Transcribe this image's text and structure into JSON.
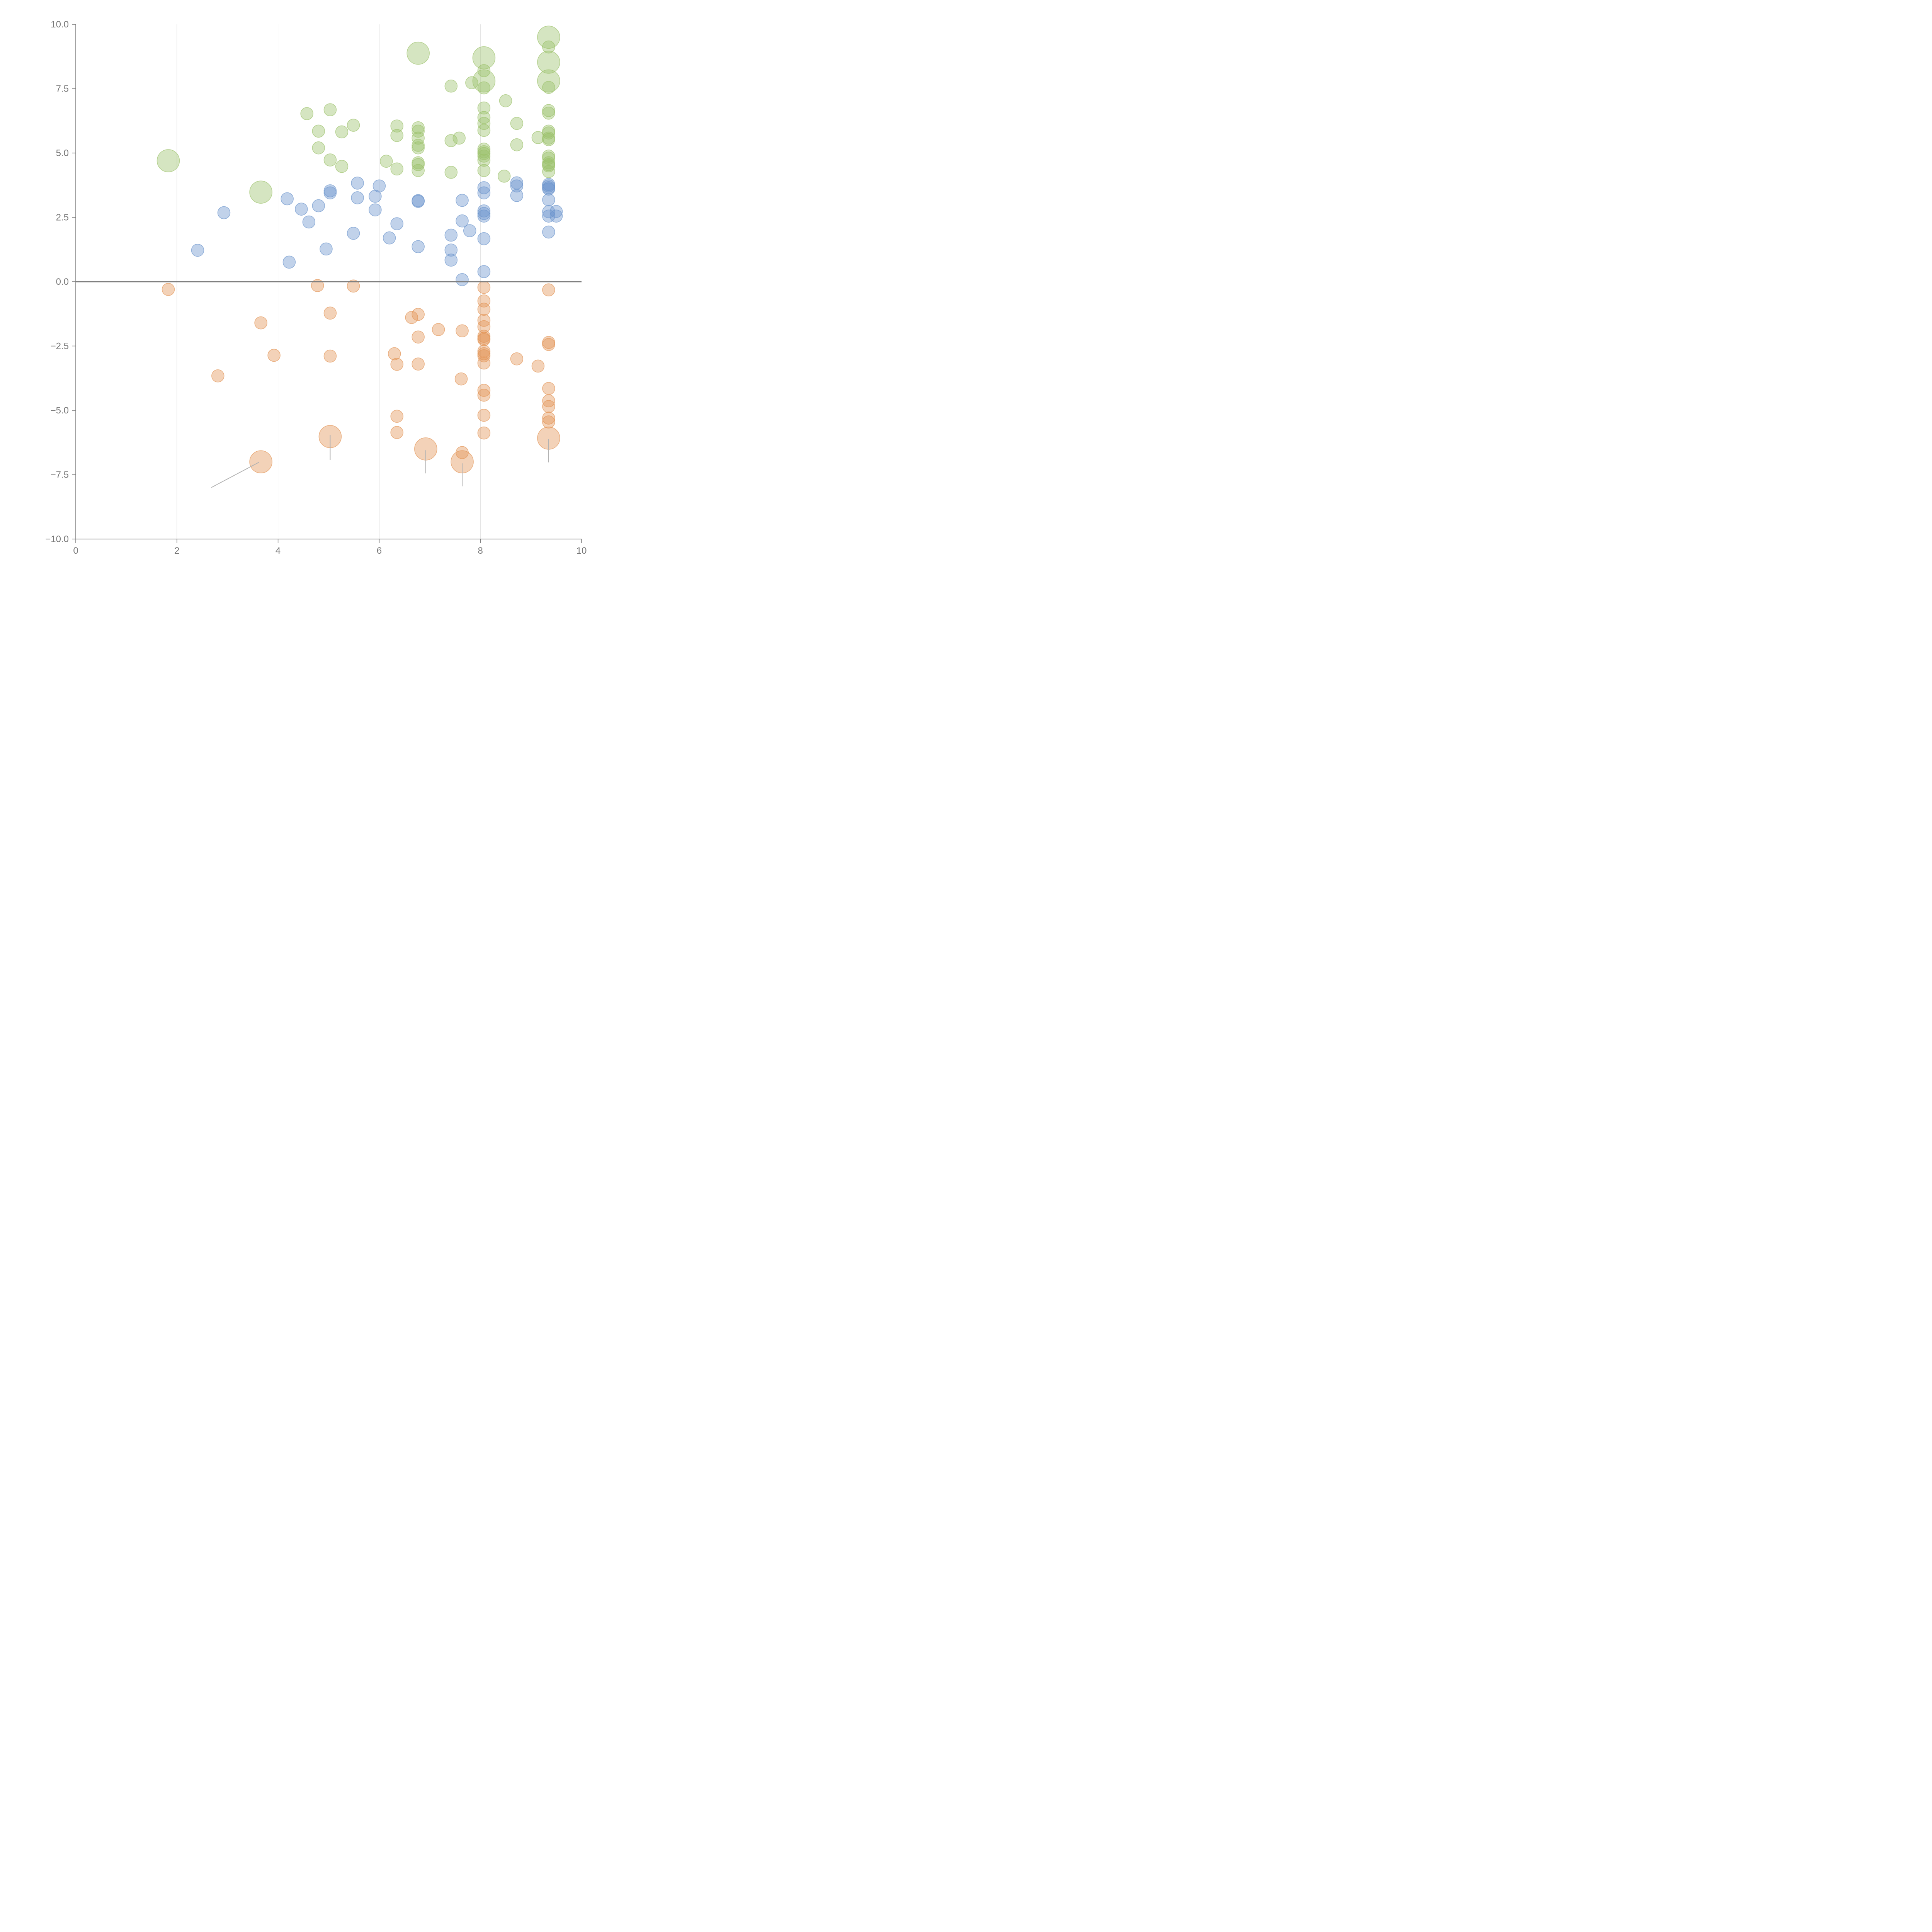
{
  "chart_data": {
    "type": "scatter",
    "title": "",
    "xlabel": "",
    "ylabel": "",
    "xlim": [
      0,
      10
    ],
    "ylim": [
      -10,
      10
    ],
    "grid": "vertical",
    "x_ticks": [
      0,
      2,
      4,
      6,
      8,
      10
    ],
    "x_tick_labels": [
      "0",
      "2",
      "4",
      "6",
      "8",
      "10"
    ],
    "y_ticks": [
      10,
      7.5,
      5,
      2.5,
      0,
      -2.5,
      -5,
      -7.5,
      -10
    ],
    "y_tick_labels": [
      "10.0",
      "7.5",
      "5.0",
      "2.5",
      "0.0",
      "−2.5",
      "−5.0",
      "−7.5",
      "−10.0"
    ],
    "reference_line_y": 0,
    "colors": {
      "green": "#9cc26b",
      "blue": "#6b94cc",
      "orange": "#e39456",
      "axis": "#777777",
      "grid": "#d9d9d9",
      "leader": "#b3b3b3"
    },
    "series": [
      {
        "name": "green",
        "color_key": "green",
        "points": [
          [
            1.83,
            4.7,
            2
          ],
          [
            3.66,
            3.48,
            2
          ],
          [
            6.77,
            8.88,
            2
          ],
          [
            8.07,
            8.7,
            2
          ],
          [
            8.07,
            7.8,
            2
          ],
          [
            9.35,
            9.5,
            2
          ],
          [
            9.35,
            8.53,
            2
          ],
          [
            9.35,
            7.8,
            2
          ],
          [
            4.57,
            6.53,
            1
          ],
          [
            5.03,
            6.68,
            1
          ],
          [
            4.8,
            5.85,
            1
          ],
          [
            5.26,
            5.82,
            1
          ],
          [
            5.49,
            6.08,
            1
          ],
          [
            4.8,
            5.2,
            1
          ],
          [
            5.03,
            4.73,
            1
          ],
          [
            5.26,
            4.48,
            1
          ],
          [
            6.14,
            4.68,
            1
          ],
          [
            6.35,
            6.05,
            1
          ],
          [
            6.35,
            5.68,
            1
          ],
          [
            6.35,
            4.38,
            1
          ],
          [
            6.77,
            5.98,
            1
          ],
          [
            6.77,
            5.85,
            1
          ],
          [
            6.77,
            5.58,
            1
          ],
          [
            6.77,
            5.3,
            1
          ],
          [
            6.77,
            5.2,
            1
          ],
          [
            6.77,
            4.62,
            1
          ],
          [
            6.77,
            4.55,
            1
          ],
          [
            6.77,
            4.32,
            1
          ],
          [
            7.42,
            7.6,
            1
          ],
          [
            7.42,
            5.48,
            1
          ],
          [
            7.42,
            4.25,
            1
          ],
          [
            7.58,
            5.58,
            1
          ],
          [
            7.83,
            7.73,
            1
          ],
          [
            8.07,
            8.2,
            1
          ],
          [
            8.07,
            7.53,
            1
          ],
          [
            8.07,
            6.75,
            1
          ],
          [
            8.07,
            6.38,
            1
          ],
          [
            8.07,
            6.15,
            1
          ],
          [
            8.07,
            5.88,
            1
          ],
          [
            8.07,
            5.15,
            1
          ],
          [
            8.07,
            5.05,
            1
          ],
          [
            8.07,
            4.98,
            1
          ],
          [
            8.07,
            4.88,
            1
          ],
          [
            8.07,
            4.72,
            1
          ],
          [
            8.07,
            4.32,
            1
          ],
          [
            8.47,
            4.1,
            1
          ],
          [
            8.5,
            7.03,
            1
          ],
          [
            8.72,
            6.15,
            1
          ],
          [
            8.72,
            5.32,
            1
          ],
          [
            9.14,
            5.6,
            1
          ],
          [
            9.35,
            9.12,
            1
          ],
          [
            9.35,
            7.55,
            1
          ],
          [
            9.35,
            6.65,
            1
          ],
          [
            9.35,
            6.55,
            1
          ],
          [
            9.35,
            5.85,
            1
          ],
          [
            9.35,
            5.78,
            1
          ],
          [
            9.35,
            5.58,
            1
          ],
          [
            9.35,
            5.52,
            1
          ],
          [
            9.35,
            4.88,
            1
          ],
          [
            9.35,
            4.8,
            1
          ],
          [
            9.35,
            4.62,
            1
          ],
          [
            9.35,
            4.55,
            1
          ],
          [
            9.35,
            4.5,
            1
          ],
          [
            9.35,
            4.28,
            1
          ]
        ]
      },
      {
        "name": "blue",
        "color_key": "blue",
        "points": [
          [
            2.41,
            1.22,
            1
          ],
          [
            2.93,
            2.68,
            1
          ],
          [
            4.18,
            3.22,
            1
          ],
          [
            4.22,
            0.76,
            1
          ],
          [
            4.46,
            2.82,
            1
          ],
          [
            4.61,
            2.32,
            1
          ],
          [
            4.8,
            2.95,
            1
          ],
          [
            4.95,
            1.27,
            1
          ],
          [
            5.03,
            3.53,
            1
          ],
          [
            5.03,
            3.45,
            1
          ],
          [
            5.49,
            1.88,
            1
          ],
          [
            5.57,
            3.83,
            1
          ],
          [
            5.57,
            3.26,
            1
          ],
          [
            5.92,
            3.32,
            1
          ],
          [
            5.92,
            2.79,
            1
          ],
          [
            6.0,
            3.72,
            1
          ],
          [
            6.2,
            1.7,
            1
          ],
          [
            6.35,
            2.25,
            1
          ],
          [
            6.77,
            3.15,
            1
          ],
          [
            6.77,
            3.12,
            1
          ],
          [
            6.77,
            1.36,
            1
          ],
          [
            7.42,
            1.81,
            1
          ],
          [
            7.42,
            1.23,
            1
          ],
          [
            7.42,
            0.84,
            1
          ],
          [
            7.64,
            3.16,
            1
          ],
          [
            7.64,
            2.36,
            1
          ],
          [
            7.64,
            0.08,
            1
          ],
          [
            7.79,
            1.98,
            1
          ],
          [
            8.07,
            3.65,
            1
          ],
          [
            8.07,
            3.45,
            1
          ],
          [
            8.07,
            2.75,
            1
          ],
          [
            8.07,
            2.65,
            1
          ],
          [
            8.07,
            2.55,
            1
          ],
          [
            8.07,
            1.67,
            1
          ],
          [
            8.07,
            0.39,
            1
          ],
          [
            8.72,
            3.84,
            1
          ],
          [
            8.72,
            3.72,
            1
          ],
          [
            8.72,
            3.35,
            1
          ],
          [
            9.35,
            3.78,
            1
          ],
          [
            9.35,
            3.72,
            1
          ],
          [
            9.35,
            3.65,
            1
          ],
          [
            9.35,
            3.6,
            1
          ],
          [
            9.35,
            3.18,
            1
          ],
          [
            9.35,
            2.72,
            1
          ],
          [
            9.35,
            2.55,
            1
          ],
          [
            9.35,
            1.93,
            1
          ],
          [
            9.5,
            2.73,
            1
          ],
          [
            9.5,
            2.55,
            1
          ]
        ]
      },
      {
        "name": "orange",
        "color_key": "orange",
        "points": [
          [
            5.03,
            -6.02,
            2
          ],
          [
            3.66,
            -7.0,
            2
          ],
          [
            6.92,
            -6.5,
            2
          ],
          [
            7.64,
            -7.0,
            2
          ],
          [
            9.35,
            -6.08,
            2
          ],
          [
            1.83,
            -0.3,
            1
          ],
          [
            2.81,
            -3.66,
            1
          ],
          [
            3.66,
            -1.6,
            1
          ],
          [
            3.92,
            -2.86,
            1
          ],
          [
            4.78,
            -0.15,
            1
          ],
          [
            5.03,
            -1.22,
            1
          ],
          [
            5.03,
            -2.89,
            1
          ],
          [
            5.49,
            -0.17,
            1
          ],
          [
            6.3,
            -2.8,
            1
          ],
          [
            6.35,
            -3.21,
            1
          ],
          [
            6.35,
            -5.23,
            1
          ],
          [
            6.35,
            -5.86,
            1
          ],
          [
            6.64,
            -1.39,
            1
          ],
          [
            6.77,
            -1.27,
            1
          ],
          [
            6.77,
            -2.15,
            1
          ],
          [
            6.77,
            -3.2,
            1
          ],
          [
            7.17,
            -1.86,
            1
          ],
          [
            7.64,
            -1.91,
            1
          ],
          [
            7.64,
            -6.64,
            1
          ],
          [
            7.62,
            -3.78,
            1
          ],
          [
            8.07,
            -0.22,
            1
          ],
          [
            8.07,
            -0.75,
            1
          ],
          [
            8.07,
            -1.07,
            1
          ],
          [
            8.07,
            -1.5,
            1
          ],
          [
            8.07,
            -1.75,
            1
          ],
          [
            8.07,
            -2.12,
            1
          ],
          [
            8.07,
            -2.2,
            1
          ],
          [
            8.07,
            -2.25,
            1
          ],
          [
            8.07,
            -2.7,
            1
          ],
          [
            8.07,
            -2.8,
            1
          ],
          [
            8.07,
            -2.88,
            1
          ],
          [
            8.07,
            -3.16,
            1
          ],
          [
            8.07,
            -4.22,
            1
          ],
          [
            8.07,
            -4.41,
            1
          ],
          [
            8.07,
            -5.19,
            1
          ],
          [
            8.07,
            -5.88,
            1
          ],
          [
            8.72,
            -3.0,
            1
          ],
          [
            9.14,
            -3.28,
            1
          ],
          [
            9.35,
            -0.32,
            1
          ],
          [
            9.35,
            -2.36,
            1
          ],
          [
            9.35,
            -2.44,
            1
          ],
          [
            9.35,
            -4.15,
            1
          ],
          [
            9.35,
            -4.63,
            1
          ],
          [
            9.35,
            -4.85,
            1
          ],
          [
            9.35,
            -5.3,
            1
          ],
          [
            9.35,
            -5.45,
            1
          ]
        ]
      }
    ],
    "leader_lines": [
      [
        2.68,
        -8.0,
        3.62,
        -7.02
      ],
      [
        5.03,
        -5.95,
        5.03,
        -6.93
      ],
      [
        6.92,
        -6.55,
        6.92,
        -7.45
      ],
      [
        7.64,
        -7.06,
        7.64,
        -7.95
      ],
      [
        9.35,
        -6.12,
        9.35,
        -7.02
      ]
    ]
  }
}
